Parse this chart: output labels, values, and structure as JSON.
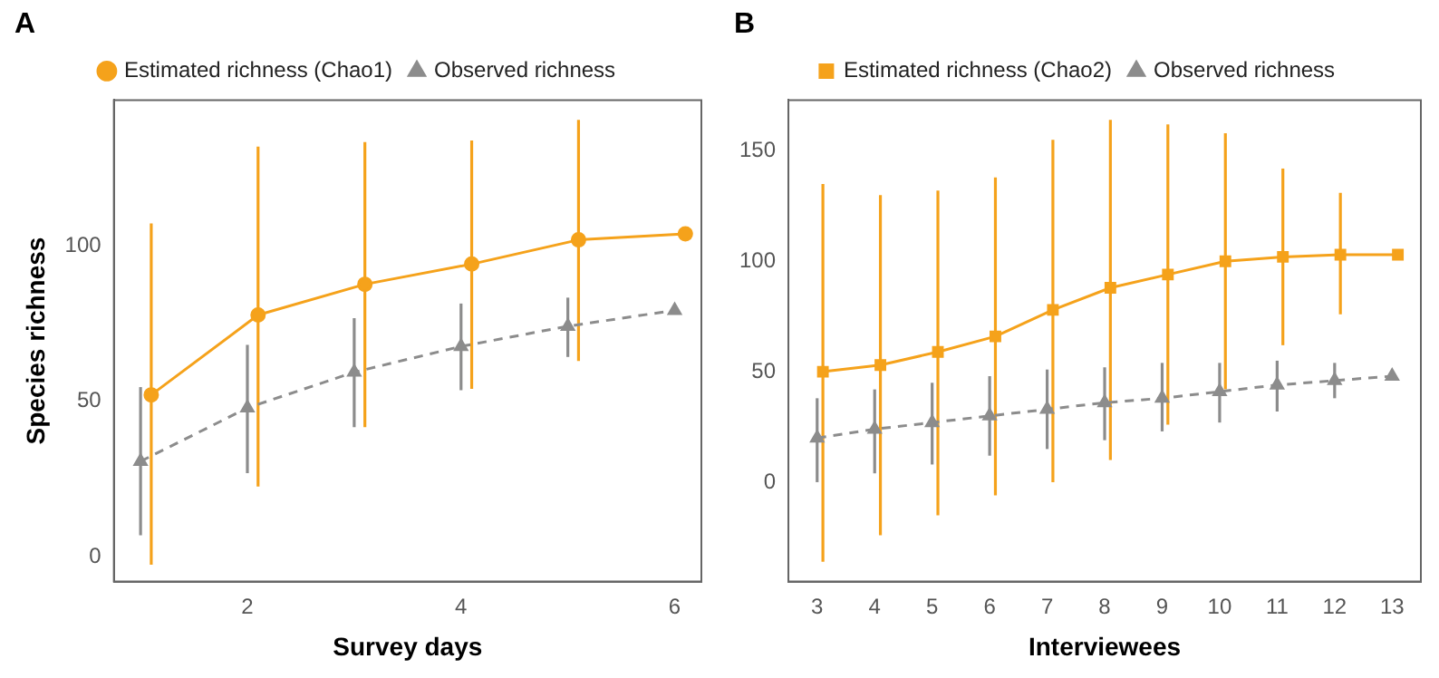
{
  "chart_data": [
    {
      "type": "line",
      "title": "A",
      "xlabel": "Survey days",
      "ylabel": "Species richness",
      "xlim": [
        0.75,
        6.25
      ],
      "ylim": [
        -8,
        147
      ],
      "xticks": [
        2,
        4,
        6
      ],
      "yticks": [
        0,
        50,
        100
      ],
      "grid": false,
      "legend": "top",
      "series": [
        {
          "name": "Estimated richness (Chao1)",
          "color": "#f5a21b",
          "marker": "circle",
          "line_style": "solid",
          "x": [
            1.1,
            2.1,
            3.1,
            4.1,
            5.1,
            6.1
          ],
          "values": [
            52.1,
            77.8,
            87.7,
            94.2,
            102,
            103.9
          ],
          "errors": [
            [
              -2.6,
              107.3
            ],
            [
              22.6,
              132
            ],
            [
              41.7,
              133.5
            ],
            [
              54,
              134
            ],
            [
              63,
              140.6
            ],
            null
          ]
        },
        {
          "name": "Observed richness",
          "color": "#8c8c8c",
          "marker": "triangle",
          "line_style": "dashed",
          "x": [
            1,
            2,
            3,
            4,
            5,
            6
          ],
          "values": [
            30.7,
            47.9,
            59.4,
            67.7,
            74.2,
            79.3
          ],
          "errors": [
            [
              6.9,
              54.6
            ],
            [
              26.9,
              68.2
            ],
            [
              41.7,
              76.8
            ],
            [
              53.6,
              81.5
            ],
            [
              64.3,
              83.4
            ],
            null
          ]
        }
      ]
    },
    {
      "type": "line",
      "title": "B",
      "xlabel": "Interviewees",
      "xlim": [
        2.5,
        13.5
      ],
      "ylim": [
        -45,
        173
      ],
      "xticks": [
        3,
        4,
        5,
        6,
        7,
        8,
        9,
        10,
        11,
        12,
        13
      ],
      "yticks": [
        0,
        50,
        100,
        150
      ],
      "grid": false,
      "legend": "top",
      "series": [
        {
          "name": "Estimated richness (Chao2)",
          "color": "#f5a21b",
          "marker": "square",
          "line_style": "solid",
          "x": [
            3.1,
            4.1,
            5.1,
            6.1,
            7.1,
            8.1,
            9.1,
            10.1,
            11.1,
            12.1,
            13.1
          ],
          "values": [
            50,
            53,
            59,
            66,
            78,
            88,
            94,
            100,
            102,
            103,
            103
          ],
          "errors": [
            [
              -36,
              135
            ],
            [
              -24,
              130
            ],
            [
              -15,
              132
            ],
            [
              -6,
              138
            ],
            [
              0,
              155
            ],
            [
              10,
              164
            ],
            [
              26,
              162
            ],
            [
              42,
              158
            ],
            [
              62,
              142
            ],
            [
              76,
              131
            ],
            null
          ]
        },
        {
          "name": "Observed richness",
          "color": "#8c8c8c",
          "marker": "triangle",
          "line_style": "dashed",
          "x": [
            3,
            4,
            5,
            6,
            7,
            8,
            9,
            10,
            11,
            12,
            13
          ],
          "values": [
            20,
            24,
            27,
            30,
            33,
            36,
            38,
            41,
            44,
            46,
            48
          ],
          "errors": [
            [
              0,
              38
            ],
            [
              4,
              42
            ],
            [
              8,
              45
            ],
            [
              12,
              48
            ],
            [
              15,
              51
            ],
            [
              19,
              52
            ],
            [
              23,
              54
            ],
            [
              27,
              54
            ],
            [
              32,
              55
            ],
            [
              38,
              54
            ],
            null
          ]
        }
      ]
    }
  ]
}
